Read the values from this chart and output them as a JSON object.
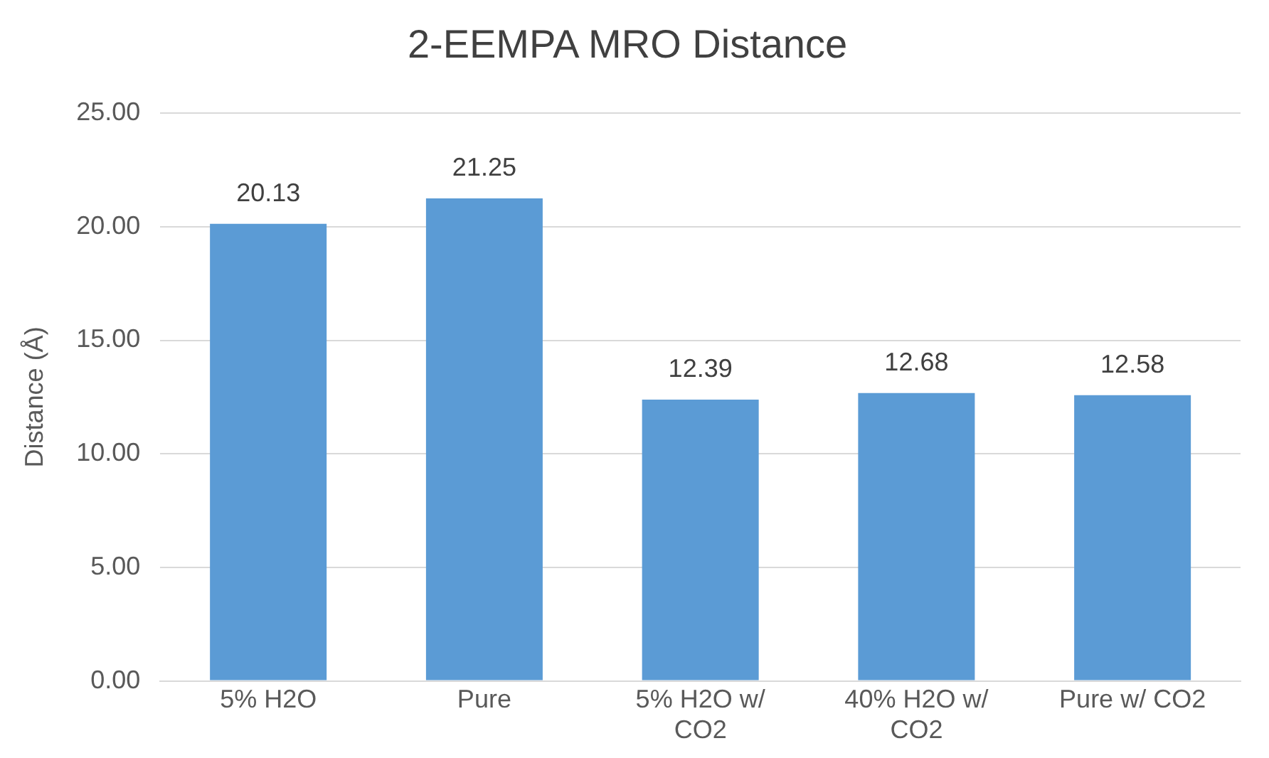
{
  "chart_data": {
    "type": "bar",
    "title": "2-EEMPA MRO Distance",
    "ylabel": "Distance (Å)",
    "categories": [
      "5% H2O",
      "Pure",
      "5% H2O w/ CO2",
      "40% H2O w/ CO2",
      "Pure w/ CO2"
    ],
    "values": [
      20.13,
      21.25,
      12.39,
      12.68,
      12.58
    ],
    "color": "#5b9bd5",
    "ylim": [
      0,
      25
    ],
    "yticks": [
      {
        "value": 0,
        "label": "0.00"
      },
      {
        "value": 5,
        "label": "5.00"
      },
      {
        "value": 10,
        "label": "10.00"
      },
      {
        "value": 15,
        "label": "15.00"
      },
      {
        "value": 20,
        "label": "20.00"
      },
      {
        "value": 25,
        "label": "25.00"
      }
    ],
    "grid": "y",
    "data_labels": true
  }
}
